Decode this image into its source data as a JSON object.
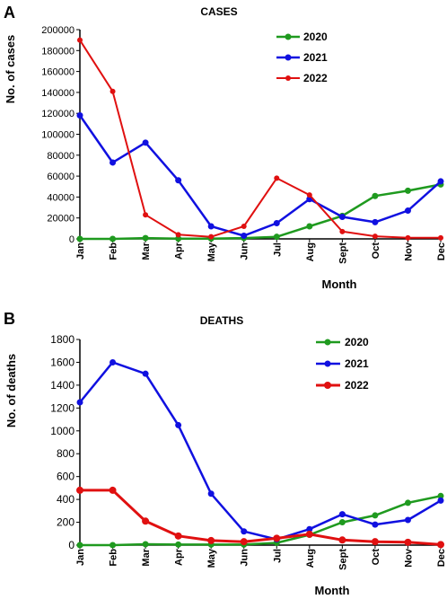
{
  "chart_data": [
    {
      "panel_label": "A",
      "type": "line",
      "title": "CASES",
      "xlabel": "Month",
      "ylabel": "No. of cases",
      "categories": [
        "Jan",
        "Feb",
        "Mar",
        "Apr",
        "May",
        "Jun",
        "Jul",
        "Aug",
        "Sept",
        "Oct",
        "Nov",
        "Dec"
      ],
      "ylim": [
        0,
        200000
      ],
      "yticks": [
        0,
        20000,
        40000,
        60000,
        80000,
        100000,
        120000,
        140000,
        160000,
        180000,
        200000
      ],
      "legend_position": "top-right",
      "grid": false,
      "series": [
        {
          "name": "2020",
          "color": "#1f9a1f",
          "values": [
            0,
            0,
            800,
            200,
            300,
            800,
            2000,
            12000,
            22000,
            41000,
            46000,
            52000
          ]
        },
        {
          "name": "2021",
          "color": "#1010e0",
          "values": [
            118000,
            73000,
            92000,
            56000,
            12000,
            3000,
            15000,
            38000,
            21000,
            16000,
            27000,
            55000
          ]
        },
        {
          "name": "2022",
          "color": "#e01010",
          "values": [
            190000,
            141000,
            23000,
            4000,
            2000,
            12000,
            58000,
            42000,
            7000,
            2500,
            1000,
            1000
          ]
        }
      ]
    },
    {
      "panel_label": "B",
      "type": "line",
      "title": "DEATHS",
      "xlabel": "Month",
      "ylabel": "No. of deaths",
      "categories": [
        "Jan",
        "Feb",
        "Mar",
        "Apr",
        "May",
        "Jun",
        "Jul",
        "Aug",
        "Sept",
        "Oct",
        "Nov",
        "Dec"
      ],
      "ylim": [
        0,
        1800
      ],
      "yticks": [
        0,
        200,
        400,
        600,
        800,
        1000,
        1200,
        1400,
        1600,
        1800
      ],
      "legend_position": "top-right",
      "grid": false,
      "series": [
        {
          "name": "2020",
          "color": "#1f9a1f",
          "values": [
            0,
            0,
            8,
            5,
            5,
            5,
            20,
            90,
            200,
            260,
            370,
            430
          ]
        },
        {
          "name": "2021",
          "color": "#1010e0",
          "values": [
            1250,
            1600,
            1500,
            1050,
            450,
            120,
            50,
            140,
            270,
            180,
            220,
            390
          ]
        },
        {
          "name": "2022",
          "color": "#e01010",
          "values": [
            480,
            480,
            210,
            80,
            40,
            30,
            60,
            95,
            45,
            30,
            25,
            5
          ]
        }
      ]
    }
  ]
}
